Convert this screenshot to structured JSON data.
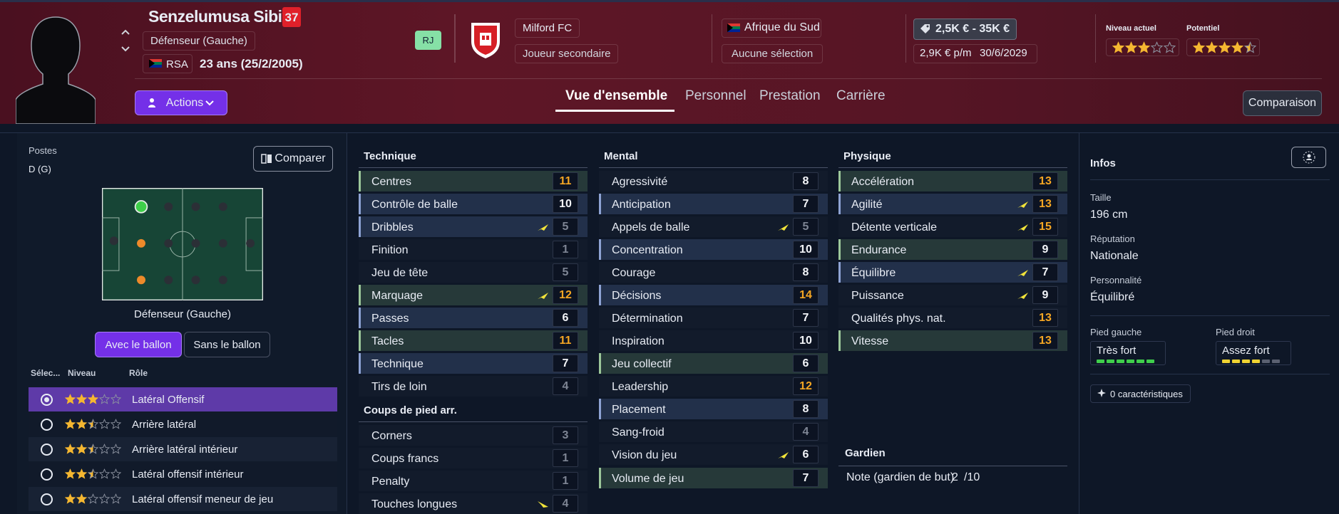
{
  "header": {
    "name": "Senzelumusa Sibiya",
    "number": 37,
    "position": "Défenseur (Gauche)",
    "nation_code": "RSA",
    "age": "23 ans (25/2/2005)",
    "badge": "RJ",
    "club": "Milford FC",
    "club_role": "Joueur secondaire",
    "country": "Afrique du Sud",
    "caps": "Aucune sélection",
    "value_range": "2,5K € - 35K €",
    "wage": "2,9K € p/m",
    "contract_end": "30/6/2029",
    "current_ability": {
      "label": "Niveau actuel",
      "stars": 3
    },
    "potential": {
      "label": "Potentiel",
      "stars": 4.5
    }
  },
  "nav": {
    "actions": "Actions",
    "tabs": [
      "Vue d'ensemble",
      "Personnel",
      "Prestation",
      "Carrière"
    ],
    "compare": "Comparaison"
  },
  "positions": {
    "title": "Postes",
    "code": "D (G)",
    "compare": "Comparer",
    "pitch_label": "Défenseur (Gauche)",
    "toggle": [
      "Avec le ballon",
      "Sans le ballon"
    ],
    "columns": [
      "Sélec...",
      "Niveau",
      "Rôle"
    ],
    "roles": [
      {
        "name": "Latéral Offensif",
        "stars": 3,
        "selected": true
      },
      {
        "name": "Arrière latéral",
        "stars": 2.5
      },
      {
        "name": "Arrière latéral intérieur",
        "stars": 2.5
      },
      {
        "name": "Latéral offensif intérieur",
        "stars": 2.5
      },
      {
        "name": "Latéral offensif meneur de jeu",
        "stars": 2
      }
    ]
  },
  "attributes": [
    {
      "title": "Technique",
      "rows": [
        {
          "name": "Centres",
          "value": 11,
          "highlight": "key"
        },
        {
          "name": "Contrôle de balle",
          "value": 10,
          "highlight": "preferred"
        },
        {
          "name": "Dribbles",
          "value": 5,
          "highlight": "preferred",
          "trend": "up"
        },
        {
          "name": "Finition",
          "value": 1
        },
        {
          "name": "Jeu de tête",
          "value": 5
        },
        {
          "name": "Marquage",
          "value": 12,
          "highlight": "key",
          "trend": "up"
        },
        {
          "name": "Passes",
          "value": 6,
          "highlight": "preferred"
        },
        {
          "name": "Tacles",
          "value": 11,
          "highlight": "key"
        },
        {
          "name": "Technique",
          "value": 7,
          "highlight": "preferred"
        },
        {
          "name": "Tirs de loin",
          "value": 4
        }
      ]
    },
    {
      "title": "Coups de pied arr.",
      "rows": [
        {
          "name": "Corners",
          "value": 3
        },
        {
          "name": "Coups francs",
          "value": 1
        },
        {
          "name": "Penalty",
          "value": 1
        },
        {
          "name": "Touches longues",
          "value": 4,
          "trend": "down"
        }
      ]
    },
    {
      "title": "Mental",
      "rows": [
        {
          "name": "Agressivité",
          "value": 8
        },
        {
          "name": "Anticipation",
          "value": 7,
          "highlight": "preferred"
        },
        {
          "name": "Appels de balle",
          "value": 5,
          "trend": "up"
        },
        {
          "name": "Concentration",
          "value": 10,
          "highlight": "preferred"
        },
        {
          "name": "Courage",
          "value": 8
        },
        {
          "name": "Décisions",
          "value": 14,
          "highlight": "preferred"
        },
        {
          "name": "Détermination",
          "value": 7
        },
        {
          "name": "Inspiration",
          "value": 10
        },
        {
          "name": "Jeu collectif",
          "value": 6,
          "highlight": "key"
        },
        {
          "name": "Leadership",
          "value": 12
        },
        {
          "name": "Placement",
          "value": 8,
          "highlight": "preferred"
        },
        {
          "name": "Sang-froid",
          "value": 4
        },
        {
          "name": "Vision du jeu",
          "value": 6,
          "trend": "up"
        },
        {
          "name": "Volume de jeu",
          "value": 7,
          "highlight": "key"
        }
      ]
    },
    {
      "title": "Physique",
      "rows": [
        {
          "name": "Accélération",
          "value": 13,
          "highlight": "key"
        },
        {
          "name": "Agilité",
          "value": 13,
          "highlight": "preferred",
          "trend": "up"
        },
        {
          "name": "Détente verticale",
          "value": 15,
          "trend": "up"
        },
        {
          "name": "Endurance",
          "value": 9,
          "highlight": "key"
        },
        {
          "name": "Équilibre",
          "value": 7,
          "highlight": "preferred",
          "trend": "up"
        },
        {
          "name": "Puissance",
          "value": 9,
          "trend": "up"
        },
        {
          "name": "Qualités phys. nat.",
          "value": 13
        },
        {
          "name": "Vitesse",
          "value": 13,
          "highlight": "key"
        }
      ]
    }
  ],
  "goalkeeper": {
    "title": "Gardien",
    "label": "Note (gardien de but)",
    "rating": 2,
    "rating_suffix": "/10"
  },
  "info": {
    "title": "Infos",
    "items": [
      {
        "label": "Taille",
        "value": "196 cm"
      },
      {
        "label": "Réputation",
        "value": "Nationale"
      },
      {
        "label": "Personnalité",
        "value": "Équilibré"
      }
    ],
    "feet": [
      {
        "label": "Pied gauche",
        "value": "Très fort",
        "level": 6,
        "color": "#3fcf4c"
      },
      {
        "label": "Pied droit",
        "value": "Assez fort",
        "level": 4,
        "color": "#f1d432"
      }
    ],
    "traits": "0 caractéristiques"
  }
}
